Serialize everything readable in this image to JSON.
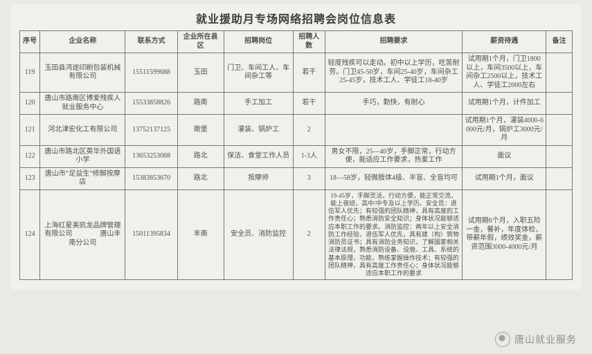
{
  "title": "就业援助月专场网络招聘会岗位信息表",
  "columns": [
    "序号",
    "企业名称",
    "联系方式",
    "企业所在县区",
    "招聘岗位",
    "招聘人数",
    "招聘要求",
    "薪资待遇",
    "备注"
  ],
  "rows": [
    {
      "seq": "119",
      "ent": "玉田县鸿途印刷包装机械有限公司",
      "tel": "15511599688",
      "area": "玉田",
      "pos": "门卫、车间工人、车间杂工等",
      "cnt": "若干",
      "req": "轻度残疾可以走动。初中以上学历，吃苦耐劳。门卫45-50岁，车间25-40岁，车间杂工25-45岁，技术工人、学徒工18-40岁",
      "sal": "试用期1个月，门卫1800以上，车间3500以上，车间杂工2500以上，技术工人、学徒工2000左右",
      "rem": ""
    },
    {
      "seq": "120",
      "ent": "唐山市路南区博爱残疾人就业服务中心",
      "tel": "15533858826",
      "area": "路南",
      "pos": "手工加工",
      "cnt": "若干",
      "req": "手巧，勤快，有耐心",
      "sal": "试用期1个月，计件加工",
      "rem": ""
    },
    {
      "seq": "121",
      "ent": "河北津宏化工有限公司",
      "tel": "13752137125",
      "area": "南堡",
      "pos": "灌装、锅炉工",
      "cnt": "2",
      "req": "",
      "sal": "试用期1个月，灌装4000-6000元/月，锅炉工3000元/月",
      "rem": ""
    },
    {
      "seq": "122",
      "ent": "唐山市路北区英华外国语小学",
      "tel": "13653253088",
      "area": "路北",
      "pos": "保洁、食堂工作人员",
      "cnt": "1-3人",
      "req": "男女不限，25—40岁，手脚正常，行动方便，能适应工作要求，热爱工作",
      "sal": "面议",
      "rem": ""
    },
    {
      "seq": "123",
      "ent": "唐山市“足益生”修脚按摩店",
      "tel": "15383853670",
      "area": "路北",
      "pos": "按摩师",
      "cnt": "3",
      "req": "18—58岁，轻微肢体4级、半盲、全盲均可",
      "sal": "试用期1个月，面议",
      "rem": ""
    },
    {
      "seq": "124",
      "ent": "上海红星美凯龙品牌管理有限公司　　　　唐山丰南分公司",
      "tel": "15011395834",
      "area": "丰南",
      "pos": "安全员、消防监控",
      "cnt": "2",
      "req": "19-45岁，手脚灵活，行动方便，能正常交流，能上夜班，高中/中专及以上学历。安全员：退伍军人优先；有较强的团队精神，具有高度的工作责任心；熟悉消防安全知识；身体状况能够适应本职工作的要求。消防监控：两年以上安全消防工作经验，退伍军人优先，具有建（构）筑物消防员证书；具有消防业务知识，了解国家相关法律法规，熟悉消防设备、设施、工具、系统的基本原理、功能，熟练掌握操作技术；有较强的团队精神，具有高度工作责任心；身体状况能够适应本职工作的要求",
      "sal": "试用期6个月，入职五险一金，餐补，年度体检，带薪年假，绩效奖金，薪资范围3000-4000元/月",
      "rem": ""
    }
  ],
  "watermark": "唐山就业服务",
  "colors": {
    "page_bg": "#e8eae3",
    "sheet_bg": "#f0f1ec",
    "border": "#6f7a6f",
    "text": "#4b504a",
    "wm_text": "#8b9088"
  }
}
